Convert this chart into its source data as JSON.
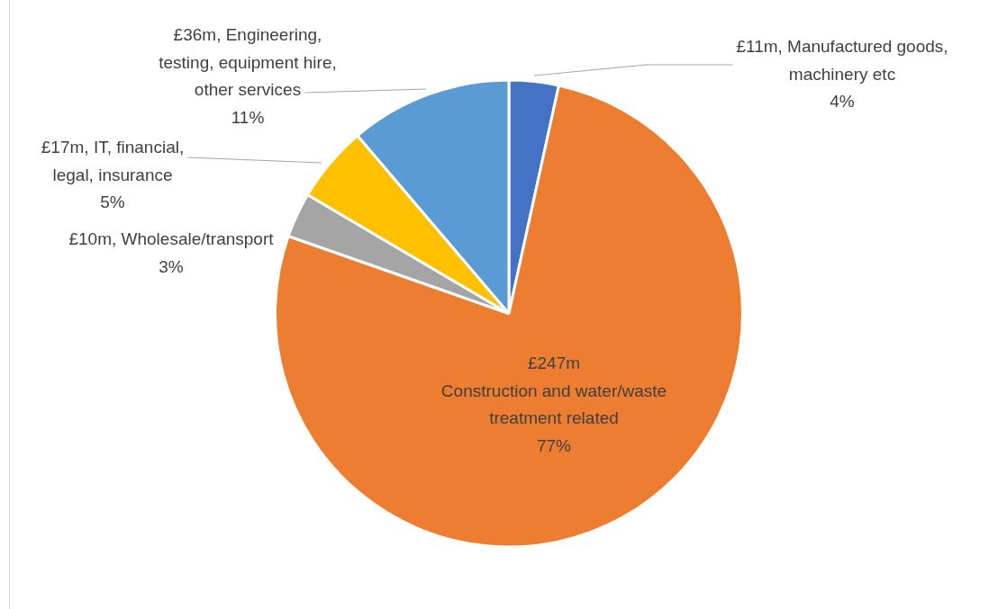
{
  "chart_data": {
    "type": "pie",
    "categories": [
      "Manufactured goods, machinery etc",
      "Construction and water/waste treatment related",
      "Wholesale/transport",
      "IT, financial, legal, insurance",
      "Engineering, testing, equipment hire, other services"
    ],
    "values": [
      11,
      247,
      10,
      17,
      36
    ],
    "colors": [
      "#4472c4",
      "#ed7d31",
      "#a5a5a5",
      "#ffc000",
      "#5b9bd5"
    ],
    "value_labels": [
      "£11m",
      "£247m",
      "£10m",
      "£17m",
      "£36m"
    ],
    "annotations": [
      {
        "text": "4%",
        "x": "Manufactured goods, machinery etc"
      },
      {
        "text": "77%",
        "x": "Construction and water/waste treatment related"
      },
      {
        "text": "3%",
        "x": "Wholesale/transport"
      },
      {
        "text": "5%",
        "x": "IT, financial, legal, insurance"
      },
      {
        "text": "11%",
        "x": "Engineering, testing, equipment hire, other services"
      }
    ],
    "legend": false
  }
}
